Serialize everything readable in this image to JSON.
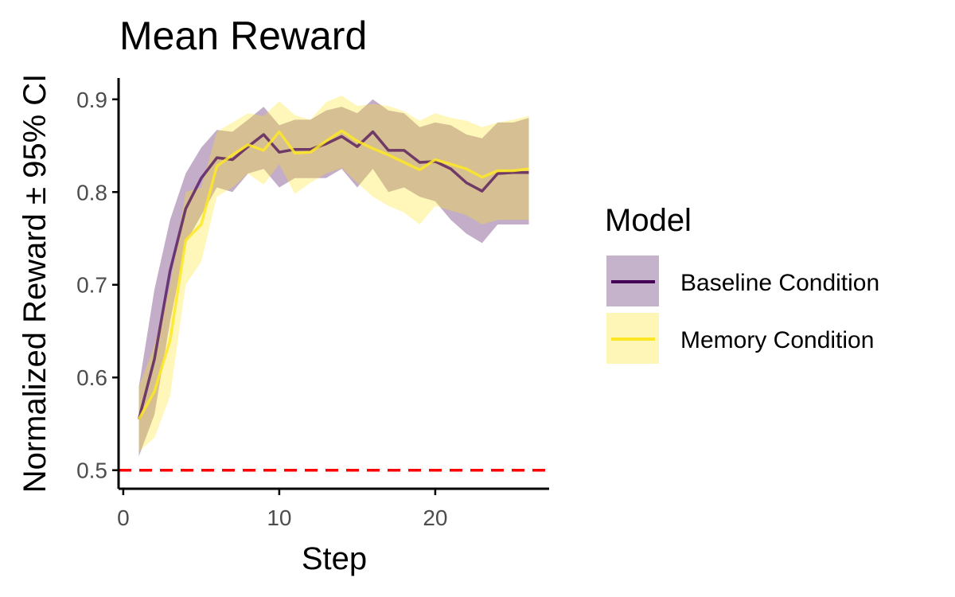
{
  "chart_data": {
    "type": "line",
    "title": "Mean Reward",
    "xlabel": "Step",
    "ylabel": "Normalized Reward ± 95% CI",
    "xlim": [
      -0.3,
      27.3
    ],
    "ylim": [
      0.48,
      0.923
    ],
    "xticks": [
      0,
      10,
      20
    ],
    "xtick_labels": [
      "0",
      "10",
      "20"
    ],
    "yticks": [
      0.5,
      0.6,
      0.7,
      0.8,
      0.9
    ],
    "ytick_labels": [
      "0.5",
      "0.6",
      "0.7",
      "0.8",
      "0.9"
    ],
    "grid": false,
    "legend": {
      "title": "Model",
      "placement": "right"
    },
    "reference_line": {
      "y": 0.5,
      "style": "dashed",
      "color": "#ff0000"
    },
    "x": [
      1,
      2,
      3,
      4,
      5,
      6,
      7,
      8,
      9,
      10,
      11,
      12,
      13,
      14,
      15,
      16,
      17,
      18,
      19,
      20,
      21,
      22,
      23,
      24,
      25,
      26
    ],
    "series": [
      {
        "name": "Baseline Condition",
        "line_color": "#440154",
        "band_color": "#c5b3cc",
        "values": [
          0.555,
          0.62,
          0.715,
          0.782,
          0.815,
          0.837,
          0.835,
          0.849,
          0.862,
          0.843,
          0.846,
          0.846,
          0.852,
          0.86,
          0.849,
          0.865,
          0.845,
          0.845,
          0.832,
          0.833,
          0.825,
          0.81,
          0.801,
          0.82,
          0.821,
          0.821
        ],
        "lower": [
          0.515,
          0.56,
          0.66,
          0.745,
          0.775,
          0.805,
          0.8,
          0.82,
          0.825,
          0.805,
          0.815,
          0.815,
          0.815,
          0.825,
          0.805,
          0.825,
          0.8,
          0.805,
          0.795,
          0.79,
          0.77,
          0.755,
          0.745,
          0.765,
          0.765,
          0.765
        ],
        "upper": [
          0.59,
          0.695,
          0.77,
          0.82,
          0.848,
          0.867,
          0.865,
          0.878,
          0.892,
          0.872,
          0.878,
          0.878,
          0.888,
          0.892,
          0.885,
          0.9,
          0.888,
          0.885,
          0.87,
          0.875,
          0.872,
          0.862,
          0.858,
          0.875,
          0.875,
          0.88
        ]
      },
      {
        "name": "Memory Condition",
        "line_color": "#fde725",
        "band_color": "#fef6b7",
        "values": [
          0.555,
          0.585,
          0.64,
          0.748,
          0.765,
          0.828,
          0.84,
          0.851,
          0.845,
          0.865,
          0.842,
          0.843,
          0.855,
          0.866,
          0.855,
          0.847,
          0.84,
          0.832,
          0.824,
          0.835,
          0.83,
          0.825,
          0.816,
          0.823,
          0.823,
          0.825
        ],
        "lower": [
          0.52,
          0.535,
          0.58,
          0.7,
          0.725,
          0.795,
          0.805,
          0.82,
          0.808,
          0.83,
          0.798,
          0.81,
          0.82,
          0.826,
          0.81,
          0.795,
          0.785,
          0.778,
          0.765,
          0.785,
          0.78,
          0.775,
          0.765,
          0.77,
          0.77,
          0.77
        ],
        "upper": [
          0.59,
          0.635,
          0.7,
          0.8,
          0.805,
          0.865,
          0.875,
          0.885,
          0.882,
          0.898,
          0.883,
          0.878,
          0.897,
          0.904,
          0.893,
          0.895,
          0.893,
          0.887,
          0.877,
          0.885,
          0.88,
          0.877,
          0.87,
          0.875,
          0.878,
          0.882
        ]
      }
    ]
  }
}
